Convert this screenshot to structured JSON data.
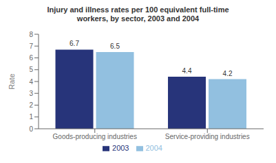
{
  "chart_data": {
    "type": "bar",
    "title": "Injury and illness rates per 100 equivalent full-time\nworkers, by sector, 2003 and 2004",
    "categories": [
      "Goods-producing industries",
      "Service-providing industries"
    ],
    "series": [
      {
        "name": "2003",
        "color": "#27347A",
        "values": [
          6.7,
          4.4
        ]
      },
      {
        "name": "2004",
        "color": "#92C0E0",
        "values": [
          6.5,
          4.2
        ]
      }
    ],
    "ylabel": "Rate",
    "ylim": [
      0,
      8
    ],
    "yticks": [
      0,
      1,
      2,
      3,
      4,
      5,
      6,
      7,
      8
    ],
    "data_labels": true,
    "grid": false,
    "legend": "bottom"
  }
}
